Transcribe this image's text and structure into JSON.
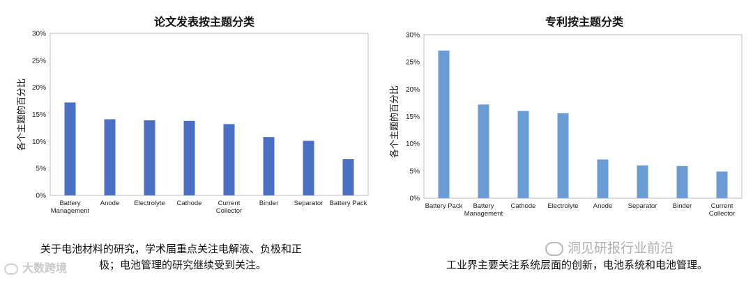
{
  "chart_data": [
    {
      "type": "bar",
      "title": "论文发表按主题分类",
      "ylabel": "各个主题的百分比",
      "ylim": [
        0,
        30
      ],
      "yticks": [
        "0%",
        "5%",
        "10%",
        "15%",
        "20%",
        "25%",
        "30%"
      ],
      "categories": [
        [
          "Battery",
          "Management"
        ],
        [
          "Anode"
        ],
        [
          "Electrolyte"
        ],
        [
          "Cathode"
        ],
        [
          "Current",
          "Collector"
        ],
        [
          "Binder"
        ],
        [
          "Separator"
        ],
        [
          "Battery Pack"
        ]
      ],
      "values": [
        17.2,
        14.1,
        13.9,
        13.8,
        13.2,
        10.8,
        10.1,
        6.7
      ],
      "color": "#4a6fc4"
    },
    {
      "type": "bar",
      "title": "专利按主题分类",
      "ylabel": "各个主题的百分比",
      "ylim": [
        0,
        30
      ],
      "yticks": [
        "0%",
        "5%",
        "10%",
        "15%",
        "20%",
        "25%",
        "30%"
      ],
      "categories": [
        [
          "Battery Pack"
        ],
        [
          "Battery",
          "Management"
        ],
        [
          "Cathode"
        ],
        [
          "Electrolyte"
        ],
        [
          "Anode"
        ],
        [
          "Separator"
        ],
        [
          "Binder"
        ],
        [
          "Current",
          "Collector"
        ]
      ],
      "values": [
        27.1,
        17.2,
        16.0,
        15.6,
        7.1,
        6.0,
        5.9,
        4.9
      ],
      "color": "#6a9bd4"
    }
  ],
  "captions": {
    "left_line1": "关于电池材料的研究，学术届重点关注电解液、负极和正",
    "left_line2": "极；电池管理的研究继续受到关注。",
    "right": "工业界主要关注系统层面的创新，电池系统和电池管理。"
  },
  "watermarks": {
    "left": "大数跨境",
    "right": "洞见研报行业前沿"
  }
}
